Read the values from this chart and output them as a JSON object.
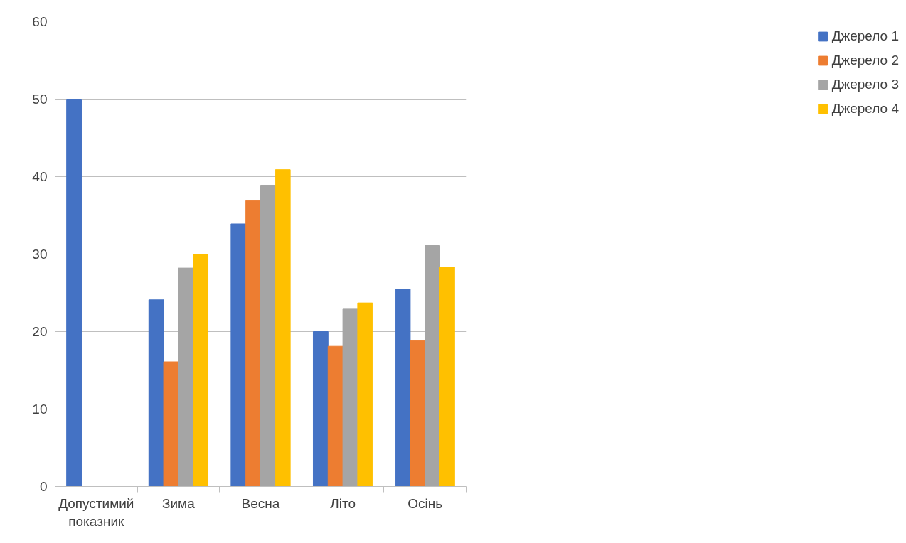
{
  "chart_data": {
    "type": "bar",
    "categories": [
      "Допустимий показник",
      "Зима",
      "Весна",
      "Літо",
      "Осінь"
    ],
    "series": [
      {
        "name": "Джерело 1",
        "color": "#4472c4",
        "values": [
          50,
          24.1,
          33.9,
          20,
          25.5
        ]
      },
      {
        "name": "Джерело 2",
        "color": "#ed7d31",
        "values": [
          null,
          16.1,
          36.9,
          18.1,
          18.8
        ]
      },
      {
        "name": "Джерело 3",
        "color": "#a5a5a5",
        "values": [
          null,
          28.2,
          38.9,
          22.9,
          31.1
        ]
      },
      {
        "name": "Джерело 4",
        "color": "#ffc000",
        "values": [
          null,
          30,
          40.9,
          23.7,
          28.3
        ]
      }
    ],
    "ylim": [
      0,
      60
    ],
    "yticks": [
      0,
      10,
      20,
      30,
      40,
      50,
      60
    ],
    "grid": "y",
    "legend": "right"
  }
}
